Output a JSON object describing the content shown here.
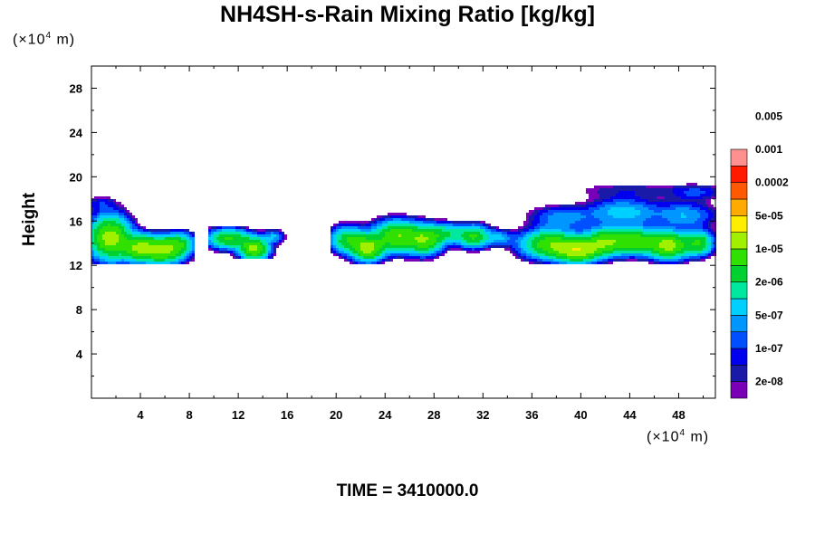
{
  "chart_data": {
    "type": "heatmap",
    "title": "NH4SH-s-Rain Mixing Ratio [kg/kg]",
    "xlabel": "",
    "ylabel": "Height",
    "x_unit": {
      "prefix": "(×10",
      "exp": "4",
      "suffix": " m)"
    },
    "y_unit": {
      "prefix": "(×10",
      "exp": "4",
      "suffix": " m)"
    },
    "xlim": [
      0,
      51
    ],
    "ylim": [
      0,
      30
    ],
    "x_ticks": [
      4,
      8,
      12,
      16,
      20,
      24,
      28,
      32,
      36,
      40,
      44,
      48
    ],
    "y_ticks": [
      4,
      8,
      12,
      16,
      20,
      24,
      28
    ],
    "annotation": "TIME = 3410000.0",
    "colorbar": {
      "colors": [
        "#7a00b8",
        "#1a1aa8",
        "#0000ee",
        "#0050ff",
        "#0096ff",
        "#00d0ff",
        "#00e8a0",
        "#00d030",
        "#30e000",
        "#a0f000",
        "#ffee00",
        "#ffaa00",
        "#ff5a00",
        "#ff1a00",
        "#ff9090"
      ],
      "labels": [
        "2e-08",
        "1e-07",
        "5e-07",
        "2e-06",
        "1e-05",
        "5e-05",
        "0.0002",
        "0.001",
        "0.005"
      ]
    },
    "cloud_regions": [
      {
        "x": [
          0,
          8.5
        ],
        "y": [
          12,
          18.6
        ],
        "max_level": 12
      },
      {
        "x": [
          9.5,
          16
        ],
        "y": [
          12.5,
          15.5
        ],
        "max_level": 12
      },
      {
        "x": [
          19.5,
          51
        ],
        "y": [
          12,
          20
        ],
        "max_level": 12
      }
    ],
    "blobs": [
      {
        "cx": 1.5,
        "cy": 14.5,
        "rx": 1.8,
        "ry": 2.1,
        "v": 0.95
      },
      {
        "cx": 0.7,
        "cy": 17.6,
        "rx": 1.6,
        "ry": 0.8,
        "v": 0.08
      },
      {
        "cx": 3.8,
        "cy": 13.6,
        "rx": 1.6,
        "ry": 1.3,
        "v": 0.7
      },
      {
        "cx": 5.8,
        "cy": 13.4,
        "rx": 2.0,
        "ry": 1.3,
        "v": 0.92
      },
      {
        "cx": 7.3,
        "cy": 14.0,
        "rx": 1.3,
        "ry": 1.1,
        "v": 0.35
      },
      {
        "cx": 11.2,
        "cy": 14.4,
        "rx": 1.9,
        "ry": 1.0,
        "v": 0.6
      },
      {
        "cx": 13.3,
        "cy": 13.5,
        "rx": 1.3,
        "ry": 1.1,
        "v": 0.88
      },
      {
        "cx": 14.9,
        "cy": 14.6,
        "rx": 1.0,
        "ry": 0.7,
        "v": 0.2
      },
      {
        "cx": 21.0,
        "cy": 14.3,
        "rx": 1.6,
        "ry": 1.3,
        "v": 0.55
      },
      {
        "cx": 22.6,
        "cy": 13.5,
        "rx": 1.4,
        "ry": 1.2,
        "v": 0.9
      },
      {
        "cx": 25.0,
        "cy": 14.6,
        "rx": 2.2,
        "ry": 1.5,
        "v": 0.8
      },
      {
        "cx": 27.3,
        "cy": 14.3,
        "rx": 1.6,
        "ry": 1.4,
        "v": 0.7
      },
      {
        "cx": 29.0,
        "cy": 14.9,
        "rx": 1.5,
        "ry": 1.0,
        "v": 0.35
      },
      {
        "cx": 31.2,
        "cy": 14.6,
        "rx": 1.5,
        "ry": 1.1,
        "v": 0.6
      },
      {
        "cx": 33.3,
        "cy": 14.5,
        "rx": 1.4,
        "ry": 0.8,
        "v": 0.2
      },
      {
        "cx": 37.5,
        "cy": 13.9,
        "rx": 2.6,
        "ry": 1.4,
        "v": 0.75
      },
      {
        "cx": 39.8,
        "cy": 13.3,
        "rx": 2.0,
        "ry": 1.1,
        "v": 0.98
      },
      {
        "cx": 41.8,
        "cy": 14.1,
        "rx": 1.8,
        "ry": 1.3,
        "v": 0.7
      },
      {
        "cx": 44.2,
        "cy": 14.2,
        "rx": 2.2,
        "ry": 1.3,
        "v": 0.75
      },
      {
        "cx": 47.2,
        "cy": 13.8,
        "rx": 1.9,
        "ry": 1.3,
        "v": 0.95
      },
      {
        "cx": 49.7,
        "cy": 14.0,
        "rx": 1.3,
        "ry": 1.2,
        "v": 0.55
      },
      {
        "cx": 38.5,
        "cy": 16.3,
        "rx": 3.0,
        "ry": 1.2,
        "v": 0.18
      },
      {
        "cx": 43.5,
        "cy": 16.8,
        "rx": 3.2,
        "ry": 1.4,
        "v": 0.25
      },
      {
        "cx": 48.5,
        "cy": 16.5,
        "rx": 2.8,
        "ry": 1.4,
        "v": 0.2
      },
      {
        "cx": 44.0,
        "cy": 18.8,
        "rx": 6.0,
        "ry": 0.9,
        "v": 0.06
      },
      {
        "cx": 49.5,
        "cy": 18.6,
        "rx": 2.5,
        "ry": 0.8,
        "v": 0.1
      }
    ]
  },
  "time_label": "TIME = 3410000.0"
}
